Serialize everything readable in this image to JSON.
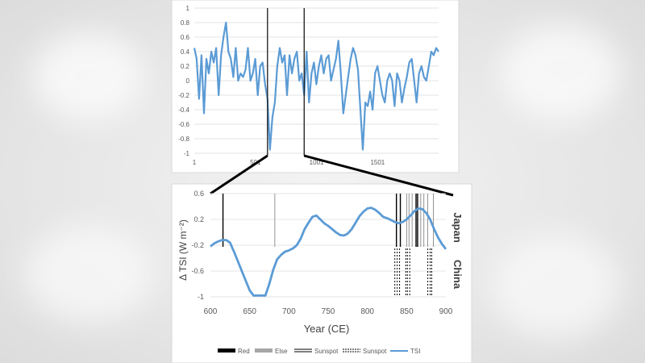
{
  "chart_data": [
    {
      "type": "line",
      "title": "",
      "x_ticks": [
        "1",
        "501",
        "1001",
        "1501"
      ],
      "x_range": [
        1,
        2000
      ],
      "ylim": [
        -1,
        1
      ],
      "y_ticks": [
        "1",
        "0.8",
        "0.6",
        "0.4",
        "0.2",
        "0",
        "-0.2",
        "-0.4",
        "-0.6",
        "-0.8",
        "-1"
      ],
      "highlight_window": [
        600,
        900
      ],
      "series": [
        {
          "name": "TSI",
          "color": "#5b9bd5",
          "x": [
            1,
            20,
            40,
            60,
            80,
            100,
            120,
            140,
            160,
            180,
            200,
            220,
            240,
            260,
            280,
            300,
            320,
            340,
            360,
            380,
            400,
            420,
            440,
            460,
            480,
            500,
            520,
            540,
            560,
            580,
            600,
            620,
            640,
            660,
            680,
            700,
            720,
            740,
            760,
            780,
            800,
            820,
            840,
            860,
            880,
            900,
            920,
            940,
            960,
            980,
            1000,
            1020,
            1040,
            1060,
            1080,
            1100,
            1120,
            1140,
            1160,
            1180,
            1200,
            1220,
            1240,
            1260,
            1280,
            1300,
            1320,
            1340,
            1360,
            1380,
            1400,
            1420,
            1440,
            1460,
            1480,
            1500,
            1520,
            1540,
            1560,
            1580,
            1600,
            1620,
            1640,
            1660,
            1680,
            1700,
            1720,
            1740,
            1760,
            1780,
            1800,
            1820,
            1840,
            1860,
            1880,
            1900,
            1920,
            1940,
            1960,
            1980,
            2000
          ],
          "values": [
            0.45,
            0.3,
            -0.25,
            0.35,
            -0.45,
            0.3,
            0.1,
            0.4,
            0.25,
            0.45,
            -0.2,
            0.35,
            0.6,
            0.8,
            0.4,
            0.3,
            0.05,
            0.45,
            0.0,
            0.1,
            0.05,
            0.15,
            0.45,
            0.0,
            0.1,
            0.3,
            -0.2,
            0.2,
            0.25,
            -0.05,
            -0.25,
            -0.95,
            -0.5,
            -0.3,
            0.2,
            0.45,
            0.25,
            0.35,
            -0.2,
            0.35,
            0.1,
            0.3,
            0.4,
            0.0,
            0.1,
            -0.2,
            0.4,
            -0.3,
            0.1,
            0.25,
            -0.05,
            0.2,
            0.35,
            0.1,
            0.3,
            0.35,
            0.0,
            0.15,
            0.3,
            0.55,
            0.1,
            -0.45,
            -0.2,
            0.05,
            0.3,
            0.45,
            0.35,
            0.15,
            -0.4,
            -0.95,
            -0.3,
            -0.35,
            -0.15,
            -0.4,
            0.1,
            0.2,
            0.0,
            -0.2,
            -0.3,
            0.0,
            0.1,
            0.0,
            -0.35,
            0.1,
            0.0,
            -0.3,
            -0.1,
            0.05,
            0.25,
            0.3,
            0.0,
            -0.3,
            0.1,
            0.2,
            0.05,
            0.0,
            0.2,
            0.4,
            0.35,
            0.45,
            0.4
          ]
        }
      ]
    },
    {
      "type": "line",
      "title": "",
      "xlabel": "Year (CE)",
      "ylabel": "Δ TSI (W m⁻²)",
      "xlim": [
        600,
        900
      ],
      "ylim": [
        -1,
        0.6
      ],
      "x_ticks": [
        "600",
        "650",
        "700",
        "750",
        "800",
        "850",
        "900"
      ],
      "y_ticks": [
        "0.6",
        "0.2",
        "-0.2",
        "-0.6",
        "-1"
      ],
      "side_labels": [
        "Japan",
        "China"
      ],
      "legend": [
        {
          "label": "Red",
          "style": "solid-thick",
          "color": "#000000"
        },
        {
          "label": "Else",
          "style": "solid-thick",
          "color": "#a6a6a6"
        },
        {
          "label": "Sunspot",
          "style": "double",
          "color": "#000000"
        },
        {
          "label": "Sunspot",
          "style": "double-dotted",
          "color": "#000000"
        },
        {
          "label": "TSI",
          "style": "line",
          "color": "#5b9bd5"
        }
      ],
      "japan_red_years": [
        616,
        837,
        842,
        862,
        864
      ],
      "japan_else_years": [
        682
      ],
      "japan_sunspot_years": [
        850,
        853,
        857,
        868,
        872,
        877,
        884
      ],
      "china_sunspot_years": [
        835,
        838,
        841,
        849,
        851,
        854,
        877,
        880,
        882
      ],
      "series": [
        {
          "name": "TSI",
          "color": "#5b9bd5",
          "x": [
            600,
            605,
            610,
            615,
            620,
            625,
            630,
            635,
            640,
            645,
            650,
            655,
            660,
            665,
            670,
            675,
            680,
            685,
            690,
            695,
            700,
            705,
            710,
            715,
            720,
            725,
            730,
            735,
            740,
            745,
            750,
            755,
            760,
            765,
            770,
            775,
            780,
            785,
            790,
            795,
            800,
            805,
            810,
            815,
            820,
            825,
            830,
            835,
            840,
            845,
            850,
            855,
            860,
            865,
            870,
            875,
            880,
            885,
            890,
            895,
            900
          ],
          "values": [
            -0.22,
            -0.17,
            -0.14,
            -0.12,
            -0.12,
            -0.16,
            -0.3,
            -0.45,
            -0.6,
            -0.75,
            -0.9,
            -0.98,
            -0.98,
            -0.98,
            -0.98,
            -0.8,
            -0.58,
            -0.42,
            -0.35,
            -0.3,
            -0.28,
            -0.25,
            -0.2,
            -0.1,
            0.05,
            0.15,
            0.24,
            0.26,
            0.2,
            0.14,
            0.1,
            0.05,
            0.0,
            -0.04,
            -0.05,
            -0.02,
            0.05,
            0.15,
            0.25,
            0.32,
            0.37,
            0.38,
            0.35,
            0.3,
            0.24,
            0.22,
            0.19,
            0.16,
            0.14,
            0.16,
            0.2,
            0.26,
            0.33,
            0.37,
            0.36,
            0.3,
            0.2,
            0.05,
            -0.08,
            -0.18,
            -0.26
          ]
        }
      ]
    }
  ]
}
